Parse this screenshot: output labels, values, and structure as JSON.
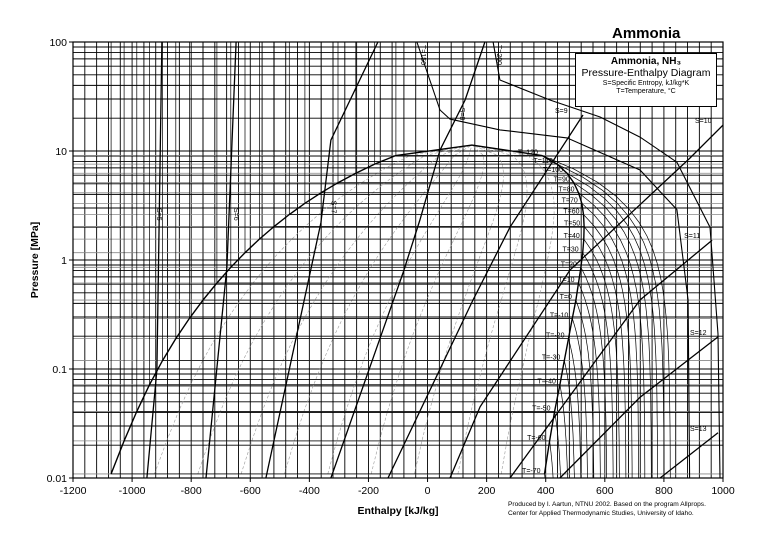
{
  "chart_data": {
    "type": "line",
    "title": "Ammonia",
    "legend": {
      "line1": "Ammonia, NH₃",
      "line2": "Pressure-Enthalpy Diagram",
      "line3": "S=Specific Entropy, kJ/kg*K",
      "line4": "T=Temperature, °C",
      "placement": "top-right"
    },
    "xlabel": "Enthalpy [kJ/kg]",
    "ylabel": "Pressure [MPa]",
    "xlim": [
      -1200,
      1000
    ],
    "ylim": [
      0.01,
      100
    ],
    "yscale": "log",
    "grid": true,
    "x_ticks": [
      "-1200",
      "-1000",
      "-800",
      "-600",
      "-400",
      "-200",
      "0",
      "200",
      "400",
      "600",
      "800",
      "1000"
    ],
    "y_ticks": [
      "0.01",
      "0.1",
      "1",
      "10",
      "100"
    ],
    "credit_line1": "Produced by I. Aartun, NTNU 2002. Based on the program Allprops.",
    "credit_line2": "Center for Applied Thermodynamic Studies, University of Idaho.",
    "critical_point": {
      "h": 150,
      "p": 11.33
    },
    "isotherms": [
      {
        "label": "T=-70",
        "T": -70,
        "p_sat": 0.0109,
        "h_liquid": -1071,
        "h_vapor": 396,
        "h_at_0_01": 413
      },
      {
        "label": "T=-60",
        "T": -60,
        "p_sat": 0.0219,
        "h_liquid": -1027,
        "h_vapor": 413,
        "h_at_0_01": 435
      },
      {
        "label": "T=-50",
        "T": -50,
        "p_sat": 0.0408,
        "h_liquid": -984,
        "h_vapor": 430,
        "h_at_0_01": 457
      },
      {
        "label": "T=-40",
        "T": -40,
        "p_sat": 0.0717,
        "h_liquid": -941,
        "h_vapor": 448,
        "h_at_0_01": 478
      },
      {
        "label": "T=-30",
        "T": -30,
        "p_sat": 0.1195,
        "h_liquid": -897,
        "h_vapor": 463,
        "h_at_0_01": 500
      },
      {
        "label": "T=-20",
        "T": -20,
        "p_sat": 0.19,
        "h_liquid": -852,
        "h_vapor": 477,
        "h_at_0_01": 521
      },
      {
        "label": "T=-10",
        "T": -10,
        "p_sat": 0.291,
        "h_liquid": -806,
        "h_vapor": 490,
        "h_at_0_01": 543
      },
      {
        "label": "T=0",
        "T": 0,
        "p_sat": 0.429,
        "h_liquid": -760,
        "h_vapor": 502,
        "h_at_0_01": 564
      },
      {
        "label": "T=10",
        "T": 10,
        "p_sat": 0.615,
        "h_liquid": -713,
        "h_vapor": 511,
        "h_at_0_01": 586
      },
      {
        "label": "T=20",
        "T": 20,
        "p_sat": 0.857,
        "h_liquid": -666,
        "h_vapor": 519,
        "h_at_0_01": 607
      },
      {
        "label": "T=30",
        "T": 30,
        "p_sat": 1.167,
        "h_liquid": -618,
        "h_vapor": 525,
        "h_at_0_01": 629
      },
      {
        "label": "T=40",
        "T": 40,
        "p_sat": 1.555,
        "h_liquid": -569,
        "h_vapor": 529,
        "h_at_0_01": 650
      },
      {
        "label": "T=50",
        "T": 50,
        "p_sat": 2.033,
        "h_liquid": -519,
        "h_vapor": 530,
        "h_at_0_01": 672
      },
      {
        "label": "T=60",
        "T": 60,
        "p_sat": 2.614,
        "h_liquid": -468,
        "h_vapor": 528,
        "h_at_0_01": 693
      },
      {
        "label": "T=70",
        "T": 70,
        "p_sat": 3.31,
        "h_liquid": -415,
        "h_vapor": 522,
        "h_at_0_01": 715
      },
      {
        "label": "T=80",
        "T": 80,
        "p_sat": 4.14,
        "h_liquid": -360,
        "h_vapor": 511,
        "h_at_0_01": 736
      },
      {
        "label": "T=90",
        "T": 90,
        "p_sat": 5.12,
        "h_liquid": -303,
        "h_vapor": 495,
        "h_at_0_01": 758
      },
      {
        "label": "T=100",
        "T": 100,
        "p_sat": 6.25,
        "h_liquid": -243,
        "h_vapor": 472,
        "h_at_0_01": 779
      },
      {
        "label": "T=110",
        "T": 110,
        "p_sat": 7.58,
        "h_liquid": -179,
        "h_vapor": 438,
        "h_at_0_01": 801
      },
      {
        "label": "T=120",
        "T": 120,
        "p_sat": 9.1,
        "h_liquid": -107,
        "h_vapor": 387,
        "h_at_0_01": 822
      }
    ],
    "supercritical_isotherms": [
      {
        "label": "T=150",
        "points": [
          [
            -36,
            100
          ],
          [
            42,
            23.8
          ],
          [
            76,
            19.6
          ],
          [
            245,
            15.6
          ],
          [
            472,
            13.2
          ],
          [
            719,
            6.7
          ],
          [
            844,
            2.9
          ],
          [
            882,
            0.43
          ],
          [
            887,
            0.01
          ]
        ]
      },
      {
        "label": "T=200",
        "points": [
          [
            222,
            100
          ],
          [
            245,
            44.8
          ],
          [
            414,
            29.4
          ],
          [
            584,
            20.5
          ],
          [
            719,
            13.4
          ],
          [
            844,
            7.9
          ],
          [
            956,
            2.0
          ],
          [
            983,
            0.21
          ],
          [
            990,
            0.01
          ]
        ]
      }
    ],
    "isentropes": [
      {
        "label": "S=5",
        "points": [
          [
            -950,
            0.01
          ],
          [
            -916,
            0.098
          ],
          [
            -899,
            100
          ]
        ]
      },
      {
        "label": "S=6",
        "points": [
          [
            -750,
            0.01
          ],
          [
            -679,
            0.86
          ],
          [
            -648,
            100
          ]
        ]
      },
      {
        "label": "S=7",
        "points": [
          [
            -547,
            0.01
          ],
          [
            -361,
            2.2
          ],
          [
            -327,
            12.6
          ],
          [
            -168,
            100
          ]
        ]
      },
      {
        "label": "S=8",
        "points": [
          [
            -327,
            0.01
          ],
          [
            -83,
            0.76
          ],
          [
            -26,
            2.33
          ],
          [
            42,
            10.2
          ],
          [
            127,
            29.4
          ],
          [
            194,
            100
          ]
        ]
      },
      {
        "label": "S=9",
        "points": [
          [
            -134,
            0.01
          ],
          [
            154,
            0.43
          ],
          [
            279,
            2.0
          ],
          [
            526,
            21.4
          ]
        ]
      },
      {
        "label": "S=10",
        "points": [
          [
            76,
            0.01
          ],
          [
            178,
            0.045
          ],
          [
            482,
            0.81
          ],
          [
            888,
            8.6
          ],
          [
            1000,
            17.3
          ]
        ]
      },
      {
        "label": "S=11",
        "points": [
          [
            279,
            0.01
          ],
          [
            719,
            0.43
          ],
          [
            963,
            1.52
          ]
        ]
      },
      {
        "label": "S=12",
        "points": [
          [
            448,
            0.01
          ],
          [
            719,
            0.055
          ],
          [
            983,
            0.197
          ]
        ]
      },
      {
        "label": "S=13",
        "points": [
          [
            787,
            0.01
          ],
          [
            983,
            0.026
          ]
        ]
      }
    ]
  }
}
